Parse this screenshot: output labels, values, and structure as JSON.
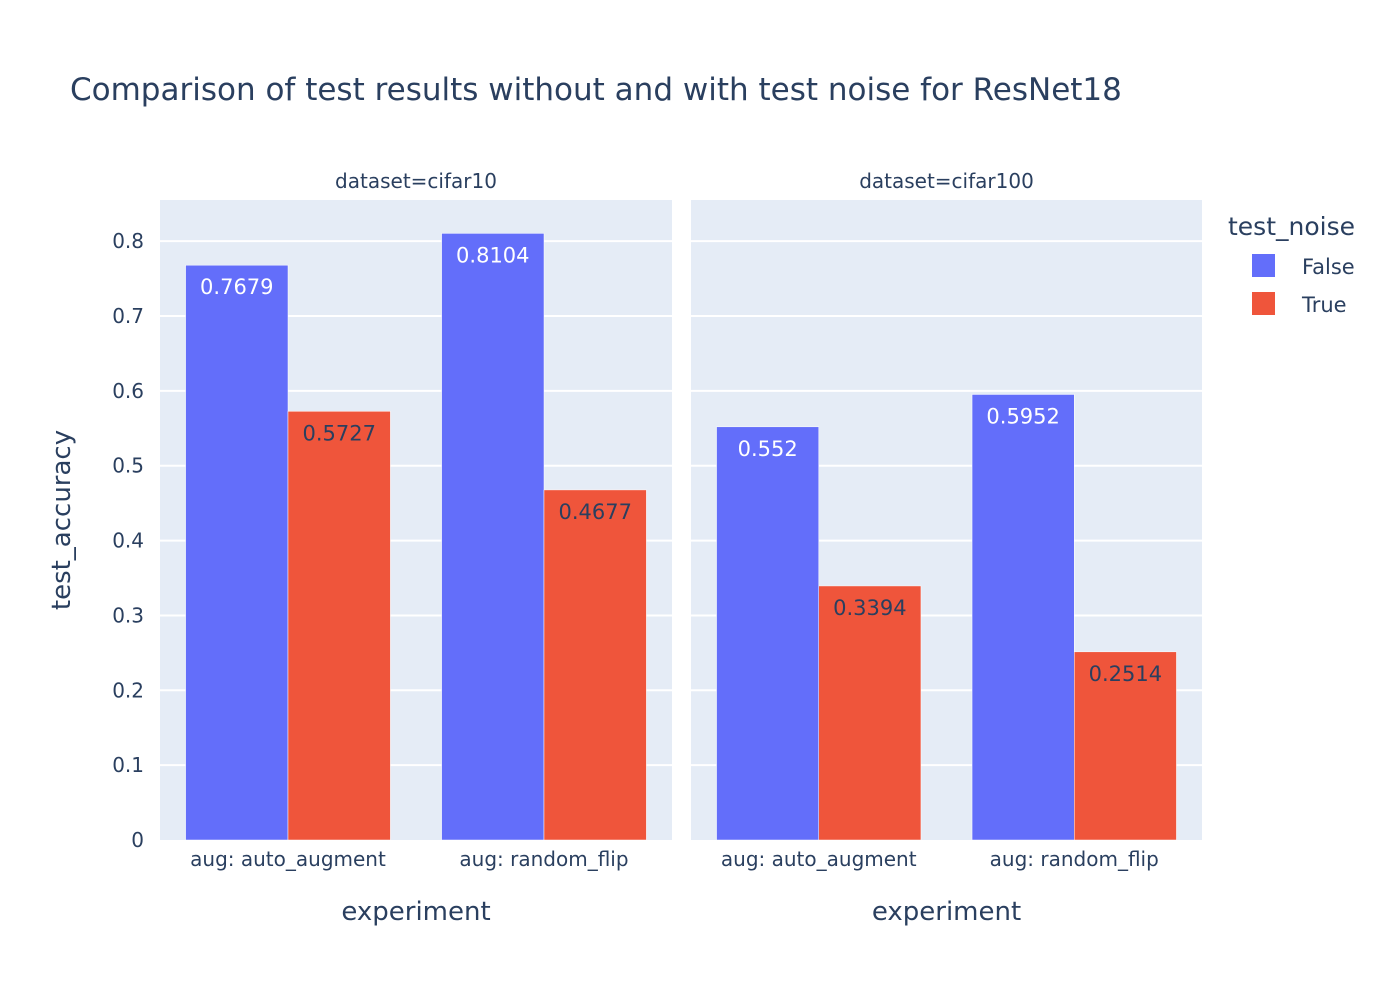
{
  "chart_data": {
    "type": "bar",
    "title": "Comparison of test results without and with test noise for ResNet18",
    "ylabel": "test_accuracy",
    "xlabel": "experiment",
    "ylim": [
      0,
      0.855
    ],
    "yticks": [
      0,
      0.1,
      0.2,
      0.3,
      0.4,
      0.5,
      0.6,
      0.7,
      0.8
    ],
    "ytick_labels": [
      "0",
      "0.1",
      "0.2",
      "0.3",
      "0.4",
      "0.5",
      "0.6",
      "0.7",
      "0.8"
    ],
    "grid": true,
    "legend": {
      "title": "test_noise",
      "placement": "right",
      "entries": [
        {
          "name": "False",
          "color": "#636efa"
        },
        {
          "name": "True",
          "color": "#ef553b"
        }
      ]
    },
    "facets": [
      {
        "title": "dataset=cifar10",
        "categories": [
          "aug: auto_augment",
          "aug: random_flip"
        ],
        "series": [
          {
            "name": "False",
            "color": "#636efa",
            "values": [
              0.7679,
              0.8104
            ],
            "labels": [
              "0.7679",
              "0.8104"
            ]
          },
          {
            "name": "True",
            "color": "#ef553b",
            "values": [
              0.5727,
              0.4677
            ],
            "labels": [
              "0.5727",
              "0.4677"
            ]
          }
        ]
      },
      {
        "title": "dataset=cifar100",
        "categories": [
          "aug: auto_augment",
          "aug: random_flip"
        ],
        "series": [
          {
            "name": "False",
            "color": "#636efa",
            "values": [
              0.552,
              0.5952
            ],
            "labels": [
              "0.552",
              "0.5952"
            ]
          },
          {
            "name": "True",
            "color": "#ef553b",
            "values": [
              0.3394,
              0.2514
            ],
            "labels": [
              "0.3394",
              "0.2514"
            ]
          }
        ]
      }
    ]
  }
}
